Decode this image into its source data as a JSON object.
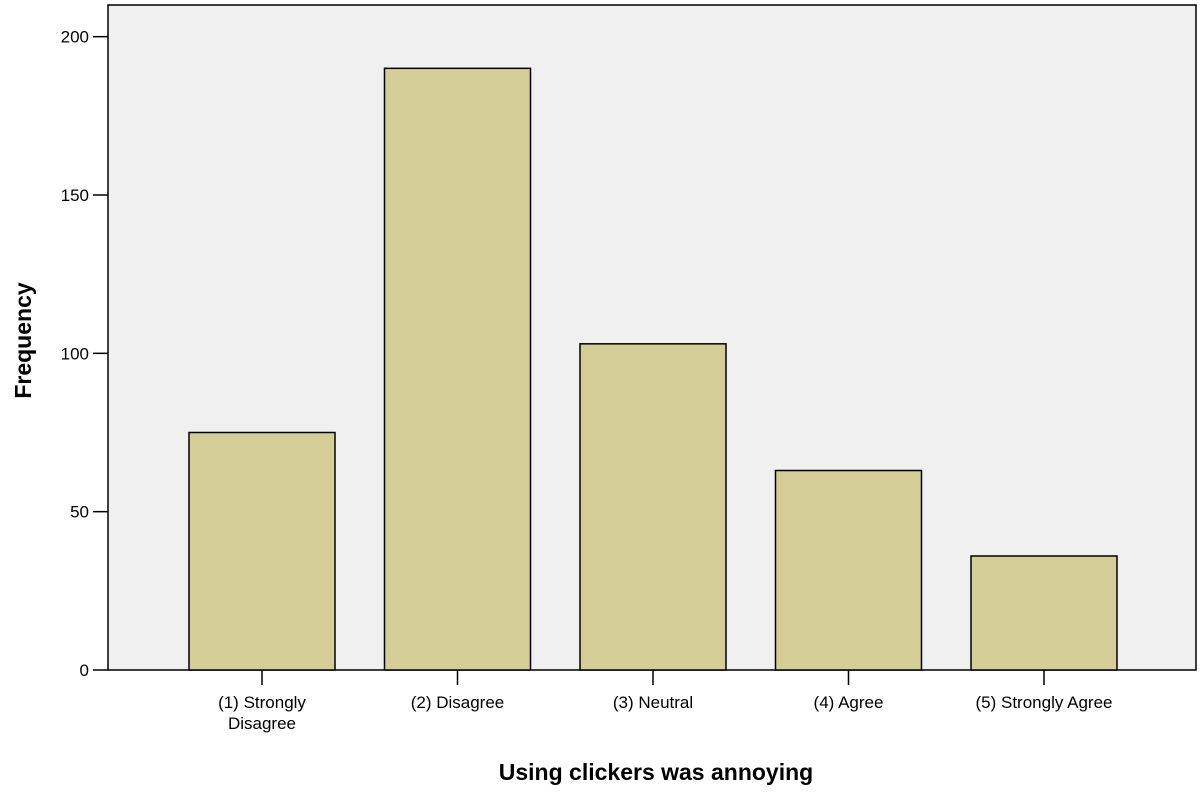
{
  "chart_data": {
    "type": "bar",
    "title": "",
    "xlabel": "Using clickers was annoying",
    "ylabel": "Frequency",
    "categories": [
      [
        "(1) Strongly",
        "Disagree"
      ],
      [
        "(2) Disagree"
      ],
      [
        "(3) Neutral"
      ],
      [
        "(4) Agree"
      ],
      [
        "(5) Strongly Agree"
      ]
    ],
    "values": [
      75,
      190,
      103,
      63,
      36
    ],
    "ylim": [
      0,
      210
    ],
    "yticks": [
      0,
      50,
      100,
      150,
      200
    ],
    "grid": false,
    "legend": "none",
    "colors": {
      "bar_fill": "#d4cd97",
      "bar_stroke": "#000000",
      "plot_background": "#f0f0f0",
      "axis": "#000000"
    }
  }
}
